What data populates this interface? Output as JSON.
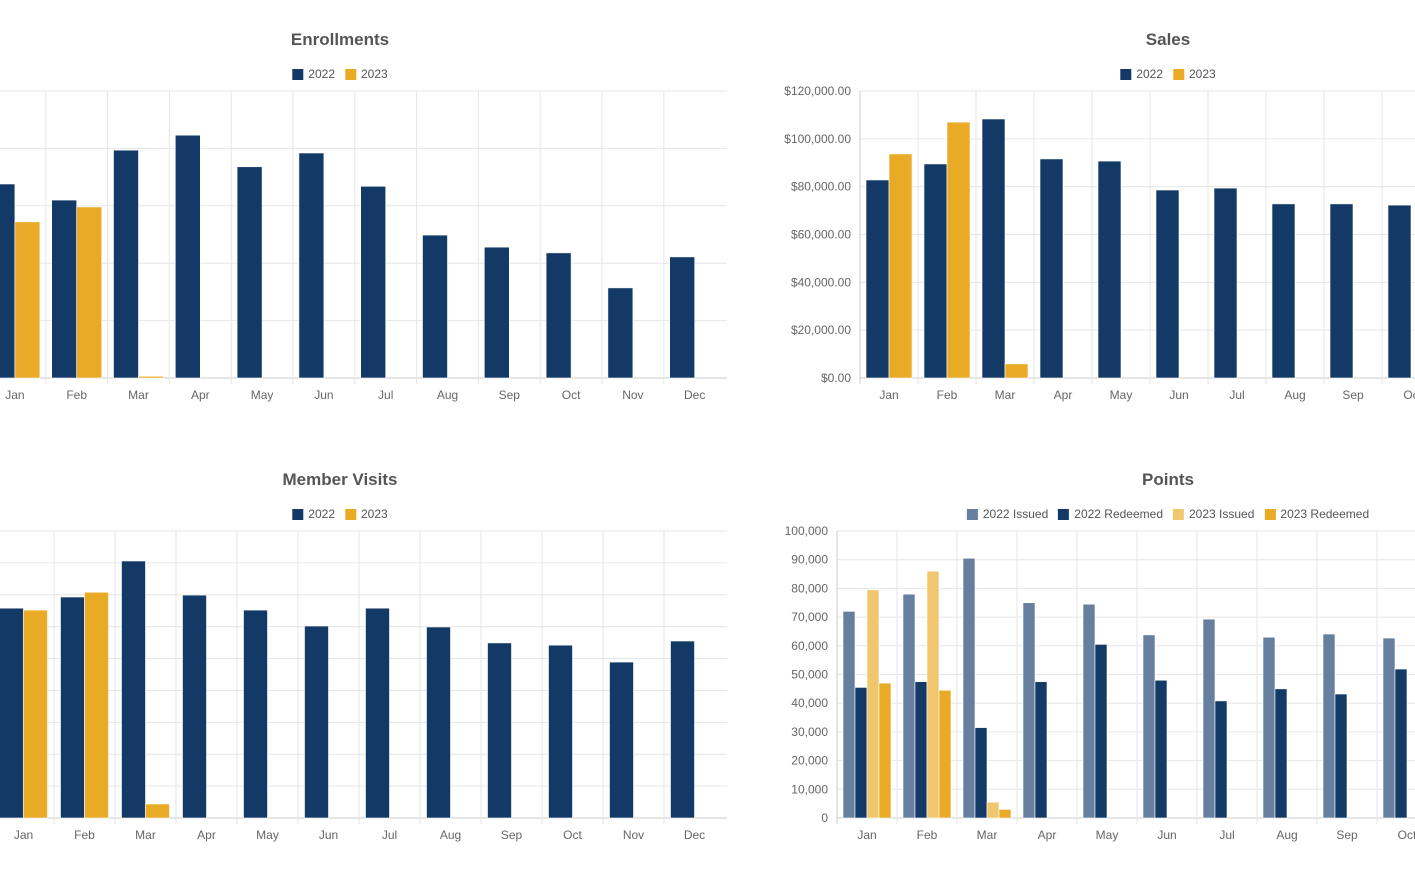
{
  "colors": {
    "y2022": "#133a66",
    "y2023": "#e9ab25",
    "issued2022": "#667f9e",
    "redeemed2022": "#133a66",
    "issued2023": "#f0c76e",
    "redeemed2023": "#e9ab25",
    "grid": "#e6e6e6"
  },
  "chart_data": [
    {
      "id": "enrollments",
      "type": "bar",
      "title": "Enrollments",
      "legend": "top",
      "categories": [
        "Jan",
        "Feb",
        "Mar",
        "Apr",
        "May",
        "Jun",
        "Jul",
        "Aug",
        "Sep",
        "Oct",
        "Nov",
        "Dec"
      ],
      "ylim": [
        0,
        5
      ],
      "grid": true,
      "yticks": [],
      "series": [
        {
          "name": "2022",
          "color": "#133a66",
          "values": [
            3.38,
            3.1,
            3.97,
            4.23,
            3.68,
            3.92,
            3.34,
            2.49,
            2.28,
            2.18,
            1.57,
            2.11
          ]
        },
        {
          "name": "2023",
          "color": "#e9ab25",
          "values": [
            2.72,
            2.98,
            0.03,
            null,
            null,
            null,
            null,
            null,
            null,
            null,
            null,
            null
          ]
        }
      ]
    },
    {
      "id": "sales",
      "type": "bar",
      "title": "Sales",
      "legend": "top",
      "categories": [
        "Jan",
        "Feb",
        "Mar",
        "Apr",
        "May",
        "Jun",
        "Jul",
        "Aug",
        "Sep",
        "Oc"
      ],
      "ylim": [
        0,
        120000
      ],
      "grid": true,
      "yticks": [
        "$0.00",
        "$20,000.00",
        "$40,000.00",
        "$60,000.00",
        "$80,000.00",
        "$100,000.00",
        "$120,000.00"
      ],
      "series": [
        {
          "name": "2022",
          "color": "#133a66",
          "values": [
            82800,
            89500,
            108300,
            91600,
            90700,
            78600,
            79400,
            72800,
            72800,
            72300
          ]
        },
        {
          "name": "2023",
          "color": "#e9ab25",
          "values": [
            93700,
            107000,
            5900,
            null,
            null,
            null,
            null,
            null,
            null,
            null
          ]
        }
      ]
    },
    {
      "id": "member-visits",
      "type": "bar",
      "title": "Member Visits",
      "legend": "top",
      "categories": [
        "Jan",
        "Feb",
        "Mar",
        "Apr",
        "May",
        "Jun",
        "Jul",
        "Aug",
        "Sep",
        "Oct",
        "Nov",
        "Dec"
      ],
      "ylim": [
        0,
        9
      ],
      "grid": true,
      "yticks": [],
      "series": [
        {
          "name": "2022",
          "color": "#133a66",
          "values": [
            6.58,
            6.93,
            8.06,
            6.99,
            6.52,
            6.02,
            6.58,
            5.99,
            5.49,
            5.42,
            4.89,
            5.55
          ]
        },
        {
          "name": "2023",
          "color": "#e9ab25",
          "values": [
            6.52,
            7.08,
            0.44,
            null,
            null,
            null,
            null,
            null,
            null,
            null,
            null,
            null
          ]
        }
      ]
    },
    {
      "id": "points",
      "type": "bar",
      "title": "Points",
      "legend": "top",
      "categories": [
        "Jan",
        "Feb",
        "Mar",
        "Apr",
        "May",
        "Jun",
        "Jul",
        "Aug",
        "Sep",
        "Oct"
      ],
      "ylim": [
        0,
        100000
      ],
      "grid": true,
      "yticks": [
        "0",
        "10,000",
        "20,000",
        "30,000",
        "40,000",
        "50,000",
        "60,000",
        "70,000",
        "80,000",
        "90,000",
        "100,000"
      ],
      "series": [
        {
          "name": "2022 Issued",
          "color": "#667f9e",
          "values": [
            72000,
            78000,
            90500,
            75000,
            74500,
            63800,
            69300,
            63000,
            64100,
            62700
          ]
        },
        {
          "name": "2022 Redeemed",
          "color": "#133a66",
          "values": [
            45500,
            47500,
            31500,
            47500,
            60500,
            48000,
            40800,
            45000,
            43200,
            51900
          ]
        },
        {
          "name": "2023 Issued",
          "color": "#f0c76e",
          "values": [
            79500,
            86000,
            5500,
            null,
            null,
            null,
            null,
            null,
            null,
            null
          ]
        },
        {
          "name": "2023 Redeemed",
          "color": "#e9ab25",
          "values": [
            47000,
            44500,
            3000,
            null,
            null,
            null,
            null,
            null,
            null,
            null
          ]
        }
      ]
    }
  ]
}
